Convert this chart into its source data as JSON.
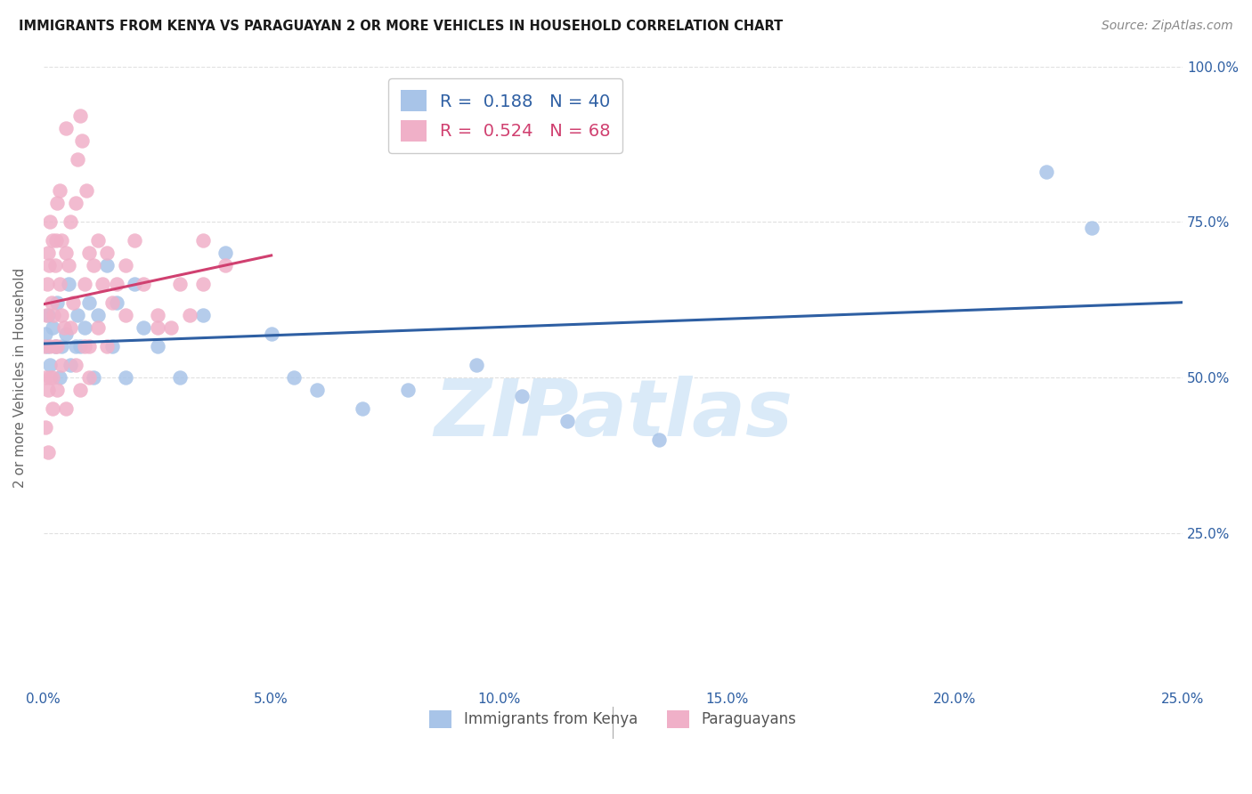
{
  "title": "IMMIGRANTS FROM KENYA VS PARAGUAYAN 2 OR MORE VEHICLES IN HOUSEHOLD CORRELATION CHART",
  "source": "Source: ZipAtlas.com",
  "ylabel": "2 or more Vehicles in Household",
  "x_min": 0.0,
  "x_max": 25.0,
  "y_min": 0.0,
  "y_max": 100.0,
  "legend_entry1_R": "0.188",
  "legend_entry1_N": "40",
  "legend_entry2_R": "0.524",
  "legend_entry2_N": "68",
  "legend_label1": "Immigrants from Kenya",
  "legend_label2": "Paraguayans",
  "blue_scatter_color": "#a8c4e8",
  "pink_scatter_color": "#f0b0c8",
  "blue_line_color": "#2e5fa3",
  "pink_line_color": "#d04070",
  "text_color_blue": "#2e5fa3",
  "axis_label_color": "#2e5fa3",
  "watermark_text": "ZIPatlas",
  "watermark_color": "#daeaf8",
  "background_color": "#ffffff",
  "grid_color": "#e0e0e0",
  "title_color": "#1a1a1a",
  "source_color": "#888888",
  "kenya_x": [
    0.05,
    0.08,
    0.1,
    0.15,
    0.2,
    0.25,
    0.3,
    0.35,
    0.4,
    0.5,
    0.55,
    0.6,
    0.7,
    0.75,
    0.8,
    0.9,
    1.0,
    1.1,
    1.2,
    1.4,
    1.5,
    1.6,
    1.8,
    2.0,
    2.2,
    2.5,
    3.0,
    3.5,
    4.0,
    5.0,
    5.5,
    6.0,
    7.0,
    8.0,
    9.5,
    10.5,
    11.5,
    13.5,
    22.0,
    23.0
  ],
  "kenya_y": [
    57,
    55,
    60,
    52,
    58,
    55,
    62,
    50,
    55,
    57,
    65,
    52,
    55,
    60,
    55,
    58,
    62,
    50,
    60,
    68,
    55,
    62,
    50,
    65,
    58,
    55,
    50,
    60,
    70,
    57,
    50,
    48,
    45,
    48,
    52,
    47,
    43,
    40,
    83,
    74
  ],
  "paraguay_x": [
    0.02,
    0.04,
    0.06,
    0.08,
    0.1,
    0.1,
    0.12,
    0.15,
    0.15,
    0.18,
    0.2,
    0.2,
    0.22,
    0.25,
    0.28,
    0.3,
    0.3,
    0.35,
    0.35,
    0.4,
    0.4,
    0.45,
    0.5,
    0.5,
    0.55,
    0.6,
    0.65,
    0.7,
    0.75,
    0.8,
    0.85,
    0.9,
    0.95,
    1.0,
    1.0,
    1.1,
    1.2,
    1.3,
    1.4,
    1.5,
    1.6,
    1.8,
    2.0,
    2.2,
    2.5,
    2.8,
    3.0,
    3.2,
    3.5,
    4.0,
    0.05,
    0.1,
    0.15,
    0.2,
    0.25,
    0.3,
    0.4,
    0.5,
    0.6,
    0.7,
    0.8,
    0.9,
    1.0,
    1.2,
    1.4,
    1.8,
    2.5,
    3.5
  ],
  "paraguay_y": [
    55,
    50,
    60,
    65,
    48,
    70,
    68,
    55,
    75,
    62,
    50,
    72,
    60,
    68,
    72,
    78,
    55,
    65,
    80,
    60,
    72,
    58,
    70,
    90,
    68,
    75,
    62,
    78,
    85,
    92,
    88,
    65,
    80,
    55,
    70,
    68,
    72,
    65,
    70,
    62,
    65,
    68,
    72,
    65,
    60,
    58,
    65,
    60,
    72,
    68,
    42,
    38,
    50,
    45,
    55,
    48,
    52,
    45,
    58,
    52,
    48,
    55,
    50,
    58,
    55,
    60,
    58,
    65
  ],
  "y_tick_vals": [
    25,
    50,
    75,
    100
  ],
  "y_tick_labels_right": [
    "25.0%",
    "50.0%",
    "75.0%",
    "100.0%"
  ],
  "x_tick_vals": [
    0,
    5,
    10,
    15,
    20,
    25
  ],
  "x_tick_labels": [
    "0.0%",
    "5.0%",
    "10.0%",
    "15.0%",
    "20.0%",
    "25.0%"
  ]
}
